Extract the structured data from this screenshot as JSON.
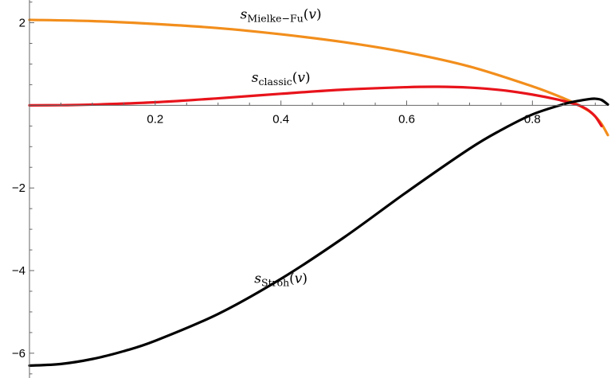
{
  "chart_data": {
    "type": "line",
    "title": "",
    "xlabel": "",
    "ylabel": "",
    "xlim": [
      0,
      0.925
    ],
    "ylim": [
      -6.6,
      2.55
    ],
    "grid": false,
    "x_ticks": [
      {
        "value": 0.2,
        "label": "0.2"
      },
      {
        "value": 0.4,
        "label": "0.4"
      },
      {
        "value": 0.6,
        "label": "0.6"
      },
      {
        "value": 0.8,
        "label": "0.8"
      }
    ],
    "y_ticks": [
      {
        "value": 2,
        "label": "2"
      },
      {
        "value": -2,
        "label": "−2"
      },
      {
        "value": -4,
        "label": "−4"
      },
      {
        "value": -6,
        "label": "−6"
      }
    ],
    "series": [
      {
        "id": "mielke",
        "color": "#f28e1c",
        "label_main": "s",
        "label_sub": "Mielke−Fu",
        "label_arg": "v",
        "label_at": [
          0.4,
          2.1
        ],
        "x": [
          0,
          0.1,
          0.2,
          0.3,
          0.4,
          0.5,
          0.6,
          0.7,
          0.8,
          0.85,
          0.87,
          0.88,
          0.89,
          0.9,
          0.91,
          0.92
        ],
        "y": [
          2.07,
          2.04,
          1.97,
          1.87,
          1.72,
          1.53,
          1.28,
          0.94,
          0.46,
          0.17,
          0.03,
          -0.05,
          -0.14,
          -0.27,
          -0.45,
          -0.72
        ]
      },
      {
        "id": "classic",
        "color": "#e8131b",
        "label_main": "s",
        "label_sub": "classic",
        "label_arg": "v",
        "label_at": [
          0.4,
          0.57
        ],
        "x": [
          0,
          0.05,
          0.1,
          0.2,
          0.3,
          0.4,
          0.5,
          0.6,
          0.65,
          0.7,
          0.75,
          0.8,
          0.84,
          0.87,
          0.88,
          0.89,
          0.9,
          0.91
        ],
        "y": [
          0,
          0.004,
          0.018,
          0.075,
          0.17,
          0.28,
          0.38,
          0.44,
          0.45,
          0.43,
          0.37,
          0.26,
          0.14,
          0.02,
          -0.04,
          -0.13,
          -0.27,
          -0.5
        ]
      },
      {
        "id": "stroh",
        "color": "#000000",
        "label_main": "s",
        "label_sub": "Stroh",
        "label_arg": "v",
        "label_at": [
          0.4,
          -4.3
        ],
        "x": [
          0,
          0.05,
          0.1,
          0.15,
          0.2,
          0.3,
          0.4,
          0.5,
          0.6,
          0.7,
          0.75,
          0.8,
          0.85,
          0.87,
          0.89,
          0.9,
          0.91,
          0.92
        ],
        "y": [
          -6.3,
          -6.26,
          -6.14,
          -5.95,
          -5.7,
          -5.05,
          -4.2,
          -3.2,
          -2.1,
          -1.05,
          -0.6,
          -0.22,
          0.03,
          0.1,
          0.15,
          0.16,
          0.13,
          0.02
        ]
      }
    ]
  }
}
